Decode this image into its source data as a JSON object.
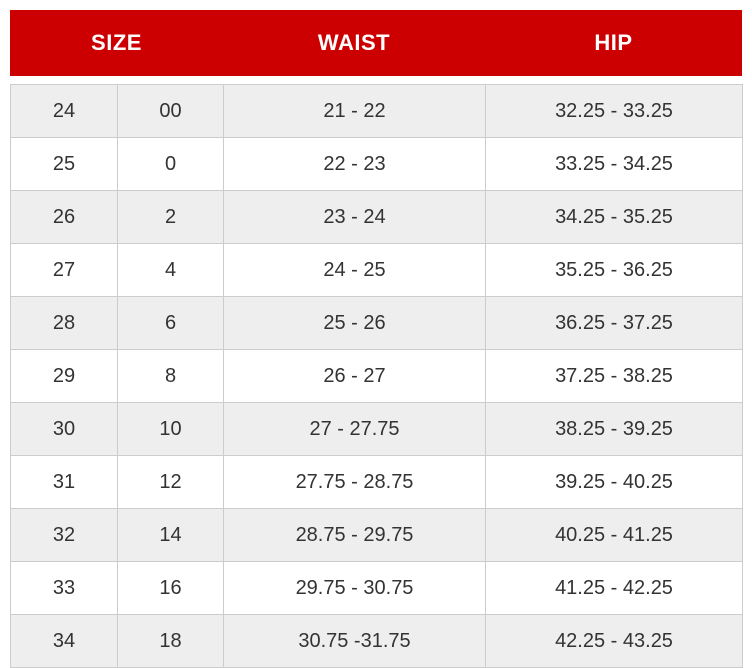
{
  "colors": {
    "header_bg": "#cc0000",
    "header_text": "#ffffff",
    "row_alt_bg": "#eeeeee",
    "row_bg": "#ffffff",
    "border": "#cccccc",
    "body_text": "#333333"
  },
  "chart_data": {
    "type": "table",
    "columns": [
      "SIZE",
      "WAIST",
      "HIP"
    ],
    "layout_note": "SIZE header spans two body sub-columns (numeric size and US size)",
    "rows": [
      [
        "24",
        "00",
        "21 - 22",
        "32.25 - 33.25"
      ],
      [
        "25",
        "0",
        "22 - 23",
        "33.25 - 34.25"
      ],
      [
        "26",
        "2",
        "23 - 24",
        "34.25 - 35.25"
      ],
      [
        "27",
        "4",
        "24 - 25",
        "35.25 - 36.25"
      ],
      [
        "28",
        "6",
        "25 - 26",
        "36.25 - 37.25"
      ],
      [
        "29",
        "8",
        "26 - 27",
        "37.25 - 38.25"
      ],
      [
        "30",
        "10",
        "27 - 27.75",
        "38.25 - 39.25"
      ],
      [
        "31",
        "12",
        "27.75 - 28.75",
        "39.25 - 40.25"
      ],
      [
        "32",
        "14",
        "28.75 - 29.75",
        "40.25 - 41.25"
      ],
      [
        "33",
        "16",
        "29.75 - 30.75",
        "41.25 - 42.25"
      ],
      [
        "34",
        "18",
        "30.75 -31.75",
        "42.25 - 43.25"
      ]
    ]
  }
}
